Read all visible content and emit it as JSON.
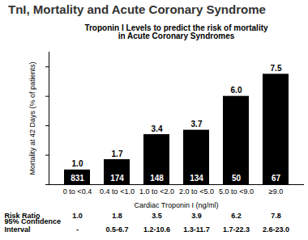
{
  "chart_data": {
    "type": "bar",
    "title": "TnI, Mortality and Acute Coronary Syndrome",
    "subtitle": "Troponin I Levels to predict the risk of mortality\nin Acute Coronary Syndromes",
    "x_label": "Cardiac Troponin I (ng/ml)",
    "y_label": "Mortality at 42 Days (% of patients)",
    "categories": [
      "0 to <0.4",
      "0.4 to <1.0",
      "1.0 to <2.0",
      "2.0 to <5.0",
      "5.0 to <9.0",
      "≥9.0"
    ],
    "values": [
      1.0,
      1.7,
      3.4,
      3.7,
      6.0,
      7.5
    ],
    "value_labels": [
      "1.0",
      "1.7",
      "3.4",
      "3.7",
      "6.0",
      "7.5"
    ],
    "patients": [
      831,
      174,
      148,
      134,
      50,
      67
    ],
    "color": "#000000",
    "ylim": [
      0,
      9
    ],
    "yticks": [
      0,
      2,
      4,
      6,
      8
    ],
    "tick_labels": "x",
    "data_labels": true,
    "risk_ratio": {
      "label": "Risk Ratio",
      "values": [
        1.0,
        1.8,
        3.5,
        3.9,
        6.2,
        7.8
      ],
      "value_labels": [
        "1.0",
        "1.8",
        "3.5",
        "3.9",
        "6.2",
        "7.8"
      ]
    },
    "confidence_interval": {
      "label": "95% Confidence\nInterval",
      "labels": [
        "-",
        "0.5-6.7",
        "1.2-10.6",
        "1.3-11.7",
        "1.7-22.3",
        "2.6-23.0"
      ]
    }
  }
}
